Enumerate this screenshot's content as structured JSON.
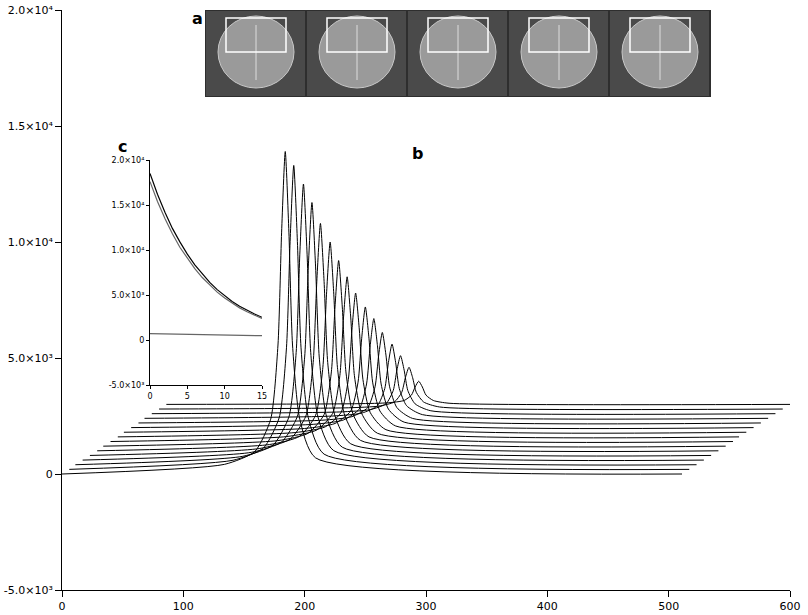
{
  "chart_data": [
    {
      "type": "line",
      "color": "#000000",
      "annotations": [
        "a",
        "b"
      ],
      "xlim": [
        0,
        600
      ],
      "xticks": [
        0,
        100,
        200,
        300,
        400,
        500,
        600
      ],
      "ylim": [
        -5000,
        20000
      ],
      "yticks": [
        {
          "value": -5000,
          "label": "-5.0×10³"
        },
        0,
        {
          "value": 5000,
          "label": "5.0×10³"
        },
        {
          "value": 10000,
          "label": "1.0×10⁴"
        },
        {
          "value": 15000,
          "label": "1.5×10⁴"
        },
        {
          "value": 20000,
          "label": "2.0×10⁴"
        }
      ],
      "grid": false,
      "series": [
        {
          "x": [
            0,
            134,
            159,
            172,
            178,
            181,
            184,
            187,
            190,
            196,
            209,
            511
          ],
          "values": [
            0,
            417,
            973,
            2363,
            5560,
            10425,
            13900,
            10425,
            5560,
            2363,
            695,
            0
          ]
        },
        {
          "x": [
            6,
            141,
            166,
            179,
            185,
            188,
            191,
            194,
            197,
            203,
            216,
            517
          ],
          "values": [
            200,
            593,
            1117,
            2427,
            5440,
            10025,
            13300,
            10025,
            5440,
            2427,
            855,
            200
          ]
        },
        {
          "x": [
            11,
            149,
            174,
            187,
            193,
            196,
            199,
            202,
            205,
            211,
            224,
            523
          ],
          "values": [
            400,
            763,
            1247,
            2457,
            5240,
            9475,
            12500,
            9475,
            5240,
            2457,
            1005,
            400
          ]
        },
        {
          "x": [
            17,
            156,
            181,
            194,
            200,
            203,
            206,
            209,
            212,
            218,
            231,
            529
          ],
          "values": [
            600,
            933,
            1377,
            2487,
            5040,
            8925,
            11700,
            8925,
            5040,
            2487,
            1155,
            600
          ]
        },
        {
          "x": [
            23,
            163,
            188,
            201,
            207,
            210,
            213,
            216,
            219,
            225,
            238,
            535
          ],
          "values": [
            800,
            1100,
            1500,
            2500,
            4800,
            8300,
            10800,
            8300,
            4800,
            2500,
            1300,
            800
          ]
        },
        {
          "x": [
            29,
            171,
            196,
            209,
            215,
            218,
            221,
            224,
            227,
            233,
            246,
            541
          ],
          "values": [
            1000,
            1270,
            1630,
            2530,
            4600,
            7750,
            10000,
            7750,
            4600,
            2530,
            1450,
            1000
          ]
        },
        {
          "x": [
            34,
            178,
            203,
            216,
            222,
            225,
            228,
            231,
            234,
            240,
            253,
            547
          ],
          "values": [
            1200,
            1440,
            1760,
            2560,
            4400,
            7200,
            9200,
            7200,
            4400,
            2560,
            1600,
            1200
          ]
        },
        {
          "x": [
            40,
            185,
            210,
            223,
            229,
            232,
            235,
            238,
            241,
            247,
            260,
            553
          ],
          "values": [
            1400,
            1613,
            1897,
            2607,
            4240,
            6725,
            8500,
            6725,
            4240,
            2607,
            1755,
            1400
          ]
        },
        {
          "x": [
            46,
            192,
            217,
            230,
            236,
            239,
            242,
            245,
            248,
            254,
            267,
            558
          ],
          "values": [
            1600,
            1786,
            2034,
            2654,
            4080,
            6250,
            7800,
            6250,
            4080,
            2654,
            1910,
            1600
          ]
        },
        {
          "x": [
            51,
            200,
            225,
            238,
            244,
            247,
            250,
            253,
            256,
            262,
            275,
            564
          ],
          "values": [
            1800,
            1962,
            2178,
            2718,
            3960,
            5850,
            7200,
            5850,
            3960,
            2718,
            2070,
            1800
          ]
        },
        {
          "x": [
            57,
            207,
            232,
            245,
            251,
            254,
            257,
            260,
            263,
            269,
            282,
            570
          ],
          "values": [
            2000,
            2141,
            2329,
            2799,
            3880,
            5525,
            6700,
            5525,
            3880,
            2799,
            2235,
            2000
          ]
        },
        {
          "x": [
            63,
            214,
            239,
            252,
            258,
            261,
            264,
            267,
            270,
            276,
            289,
            576
          ],
          "values": [
            2200,
            2317,
            2473,
            2863,
            3760,
            5125,
            6100,
            5125,
            3760,
            2863,
            2395,
            2200
          ]
        },
        {
          "x": [
            68,
            222,
            247,
            260,
            266,
            269,
            272,
            275,
            278,
            284,
            297,
            582
          ],
          "values": [
            2400,
            2496,
            2624,
            2944,
            3680,
            4800,
            5600,
            4800,
            3680,
            2944,
            2560,
            2400
          ]
        },
        {
          "x": [
            74,
            229,
            254,
            267,
            273,
            276,
            279,
            282,
            285,
            291,
            304,
            588
          ],
          "values": [
            2600,
            2675,
            2775,
            3025,
            3600,
            4475,
            5100,
            4475,
            3600,
            3025,
            2725,
            2600
          ]
        },
        {
          "x": [
            80,
            236,
            261,
            274,
            280,
            283,
            286,
            289,
            292,
            298,
            311,
            594
          ],
          "values": [
            2800,
            2854,
            2926,
            3106,
            3520,
            4150,
            4600,
            4150,
            3520,
            3106,
            2890,
            2800
          ]
        },
        {
          "x": [
            86,
            244,
            269,
            282,
            288,
            291,
            294,
            297,
            300,
            306,
            319,
            600
          ],
          "values": [
            3000,
            3030,
            3070,
            3170,
            3400,
            3750,
            4000,
            3750,
            3400,
            3170,
            3050,
            3000
          ]
        }
      ]
    },
    {
      "type": "line",
      "annotations": [
        "c"
      ],
      "xlim": [
        0,
        15
      ],
      "xticks": [
        0,
        5,
        10,
        15
      ],
      "ylim": [
        -5000,
        20000
      ],
      "yticks": [
        {
          "value": -5000,
          "label": "-5.0×10³"
        },
        0,
        {
          "value": 5000,
          "label": "5.0×10³"
        },
        {
          "value": 10000,
          "label": "1.0×10⁴"
        },
        {
          "value": 15000,
          "label": "1.5×10⁴"
        },
        {
          "value": 20000,
          "label": "2.0×10⁴"
        }
      ],
      "grid": false,
      "x": [
        0,
        1,
        2,
        3,
        4,
        5,
        6,
        7,
        8,
        9,
        10,
        11,
        12,
        13,
        14,
        15
      ],
      "series": [
        {
          "color": "#000000",
          "values": [
            18500,
            16200,
            14200,
            12400,
            10900,
            9540,
            8350,
            7310,
            6400,
            5600,
            4900,
            4290,
            3760,
            3290,
            2880,
            2520
          ]
        },
        {
          "color": "#666666",
          "values": [
            17600,
            15400,
            13500,
            11800,
            10300,
            9060,
            7930,
            6940,
            6080,
            5320,
            4660,
            4080,
            3570,
            3130,
            2740,
            2400
          ]
        },
        {
          "color": "#666666",
          "values": [
            700,
            680,
            670,
            650,
            640,
            620,
            610,
            590,
            580,
            560,
            550,
            530,
            520,
            500,
            490,
            480
          ]
        }
      ]
    }
  ]
}
